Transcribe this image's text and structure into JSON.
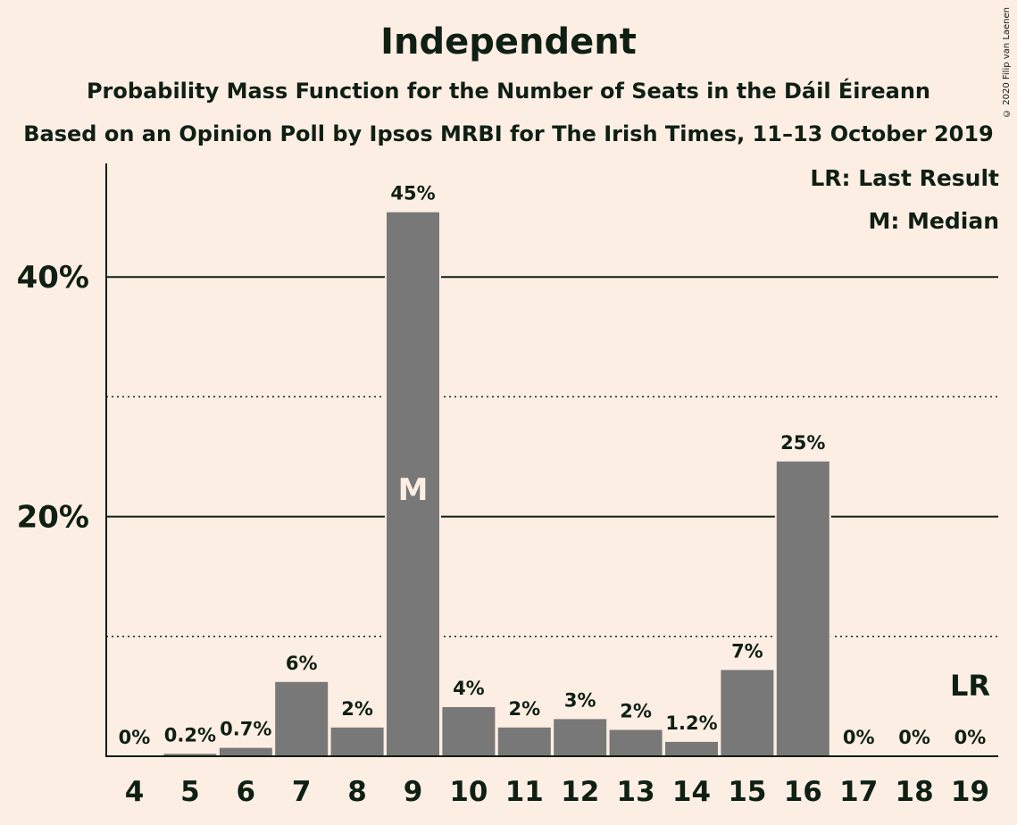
{
  "chart_data": {
    "type": "bar",
    "title": "Independent",
    "subtitle": "Probability Mass Function for the Number of Seats in the Dáil Éireann",
    "subtitle2": "Based on an Opinion Poll by Ipsos MRBI for The Irish Times, 11–13 October 2019",
    "copyright": "© 2020 Filip van Laenen",
    "legend": [
      "LR: Last Result",
      "M: Median"
    ],
    "categories": [
      "4",
      "5",
      "6",
      "7",
      "8",
      "9",
      "10",
      "11",
      "12",
      "13",
      "14",
      "15",
      "16",
      "17",
      "18",
      "19"
    ],
    "values": [
      0,
      0.2,
      0.7,
      6.2,
      2.4,
      45.4,
      4.1,
      2.4,
      3.1,
      2.2,
      1.2,
      7.2,
      24.6,
      0,
      0,
      0
    ],
    "value_labels": [
      "0%",
      "0.2%",
      "0.7%",
      "6%",
      "2%",
      "45%",
      "4%",
      "2%",
      "3%",
      "2%",
      "1.2%",
      "7%",
      "25%",
      "0%",
      "0%",
      "0%"
    ],
    "ylim": [
      0,
      49
    ],
    "ytick_labels": [
      {
        "value": 20,
        "label": "20%"
      },
      {
        "value": 40,
        "label": "40%"
      }
    ],
    "minor_gridlines": [
      10,
      30
    ],
    "median_category": "9",
    "median_label": "M",
    "last_result_category": "19",
    "last_result_label": "LR",
    "bar_color": "#787878"
  }
}
